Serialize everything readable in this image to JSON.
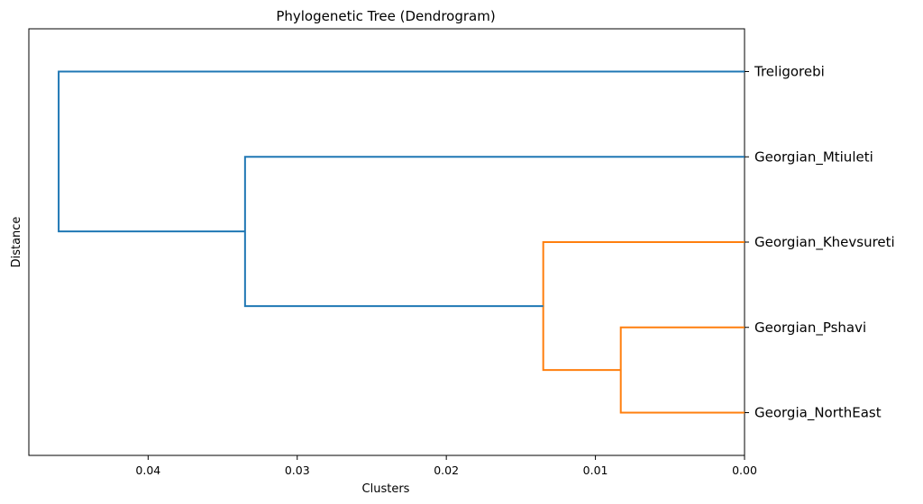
{
  "chart_data": {
    "type": "dendrogram",
    "title": "Phylogenetic Tree (Dendrogram)",
    "xlabel": "Clusters",
    "ylabel": "Distance",
    "orientation": "left",
    "xlim": [
      0.048,
      0.0
    ],
    "x_ticks": [
      0.04,
      0.03,
      0.02,
      0.01,
      0.0
    ],
    "x_tick_labels": [
      "0.04",
      "0.03",
      "0.02",
      "0.01",
      "0.00"
    ],
    "leaves": [
      "Treligorebi",
      "Georgian_Mtiuleti",
      "Georgian_Khevsureti",
      "Georgian_Pshavi",
      "Georgia_NorthEast"
    ],
    "links": [
      {
        "left": "Georgian_Pshavi",
        "right": "Georgia_NorthEast",
        "height": 0.0083,
        "color": "#ff7f0e"
      },
      {
        "left": "Georgian_Khevsureti",
        "right": "Georgian_Pshavi + Georgia_NorthEast",
        "height": 0.0135,
        "color": "#ff7f0e"
      },
      {
        "left": "Georgian_Mtiuleti",
        "right": "Georgian_Khevsureti + Georgian_Pshavi + Georgia_NorthEast",
        "height": 0.0335,
        "color": "#1f77b4"
      },
      {
        "left": "Treligorebi",
        "right": "Georgian_Mtiuleti + Georgian_Khevsureti + Georgian_Pshavi + Georgia_NorthEast",
        "height": 0.046,
        "color": "#1f77b4"
      }
    ],
    "colors": {
      "cluster": "#ff7f0e",
      "above_threshold": "#1f77b4"
    },
    "grid": false,
    "legend": "none"
  }
}
